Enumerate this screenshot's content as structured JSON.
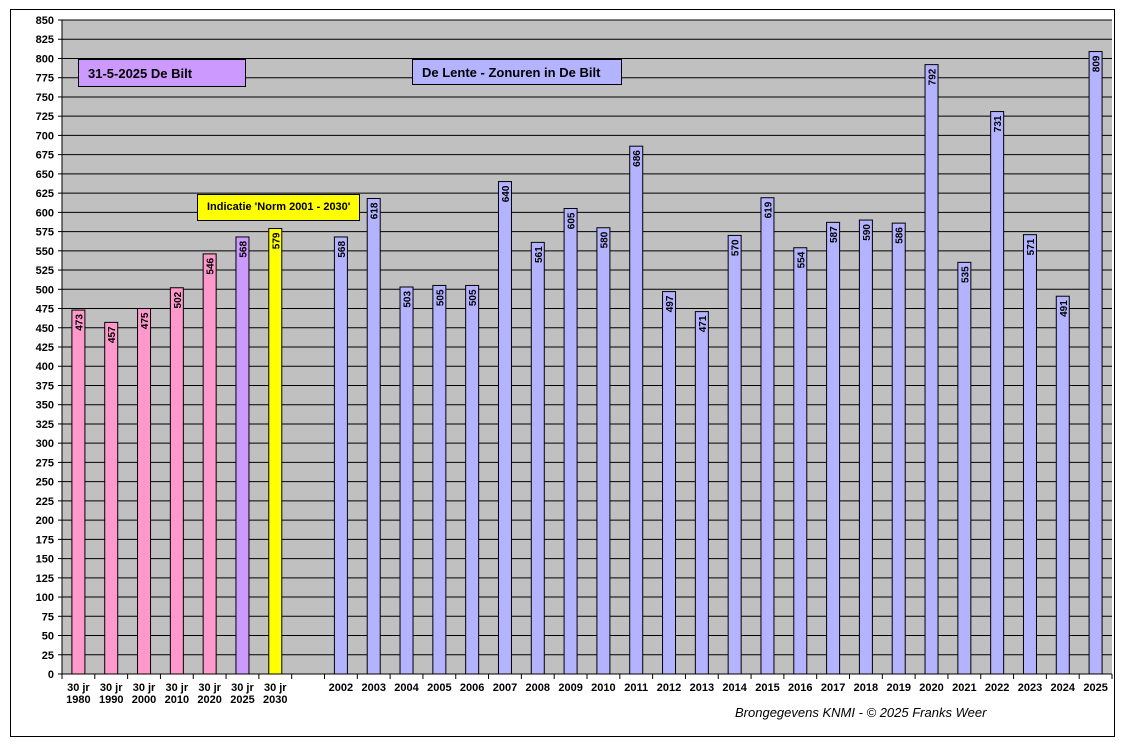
{
  "chart_data": {
    "type": "bar",
    "title": "De Lente - Zonuren in De Bilt",
    "date_label": "31-5-2025  De Bilt",
    "annotation": "Indicatie 'Norm 2001 - 2030'",
    "source": "Brongegevens KNMI   -  © 2025 Franks Weer",
    "ylim": [
      0,
      850
    ],
    "ytick_step": 25,
    "grid": true,
    "colors": {
      "norm": "#ff99cc",
      "norm_current": "#cc99ff",
      "indication": "#ffff00",
      "year": "#b3b3ff",
      "plot_bg": "#c0c0c0"
    },
    "bars": [
      {
        "label": "30 jr\n1980",
        "value": 473,
        "kind": "norm"
      },
      {
        "label": "30 jr\n1990",
        "value": 457,
        "kind": "norm"
      },
      {
        "label": "30 jr\n2000",
        "value": 475,
        "kind": "norm"
      },
      {
        "label": "30 jr\n2010",
        "value": 502,
        "kind": "norm"
      },
      {
        "label": "30 jr\n2020",
        "value": 546,
        "kind": "norm"
      },
      {
        "label": "30 jr\n2025",
        "value": 568,
        "kind": "norm_current"
      },
      {
        "label": "30 jr\n2030",
        "value": 579,
        "kind": "indication"
      },
      {
        "label": "",
        "value": null,
        "kind": "gap"
      },
      {
        "label": "2002",
        "value": 568,
        "kind": "year"
      },
      {
        "label": "2003",
        "value": 618,
        "kind": "year"
      },
      {
        "label": "2004",
        "value": 503,
        "kind": "year"
      },
      {
        "label": "2005",
        "value": 505,
        "kind": "year"
      },
      {
        "label": "2006",
        "value": 505,
        "kind": "year"
      },
      {
        "label": "2007",
        "value": 640,
        "kind": "year"
      },
      {
        "label": "2008",
        "value": 561,
        "kind": "year"
      },
      {
        "label": "2009",
        "value": 605,
        "kind": "year"
      },
      {
        "label": "2010",
        "value": 580,
        "kind": "year"
      },
      {
        "label": "2011",
        "value": 686,
        "kind": "year"
      },
      {
        "label": "2012",
        "value": 497,
        "kind": "year"
      },
      {
        "label": "2013",
        "value": 471,
        "kind": "year"
      },
      {
        "label": "2014",
        "value": 570,
        "kind": "year"
      },
      {
        "label": "2015",
        "value": 619,
        "kind": "year"
      },
      {
        "label": "2016",
        "value": 554,
        "kind": "year"
      },
      {
        "label": "2017",
        "value": 587,
        "kind": "year"
      },
      {
        "label": "2018",
        "value": 590,
        "kind": "year"
      },
      {
        "label": "2019",
        "value": 586,
        "kind": "year"
      },
      {
        "label": "2020",
        "value": 792,
        "kind": "year"
      },
      {
        "label": "2021",
        "value": 535,
        "kind": "year"
      },
      {
        "label": "2022",
        "value": 731,
        "kind": "year"
      },
      {
        "label": "2023",
        "value": 571,
        "kind": "year"
      },
      {
        "label": "2024",
        "value": 491,
        "kind": "year"
      },
      {
        "label": "2025",
        "value": 809,
        "kind": "year"
      }
    ]
  }
}
